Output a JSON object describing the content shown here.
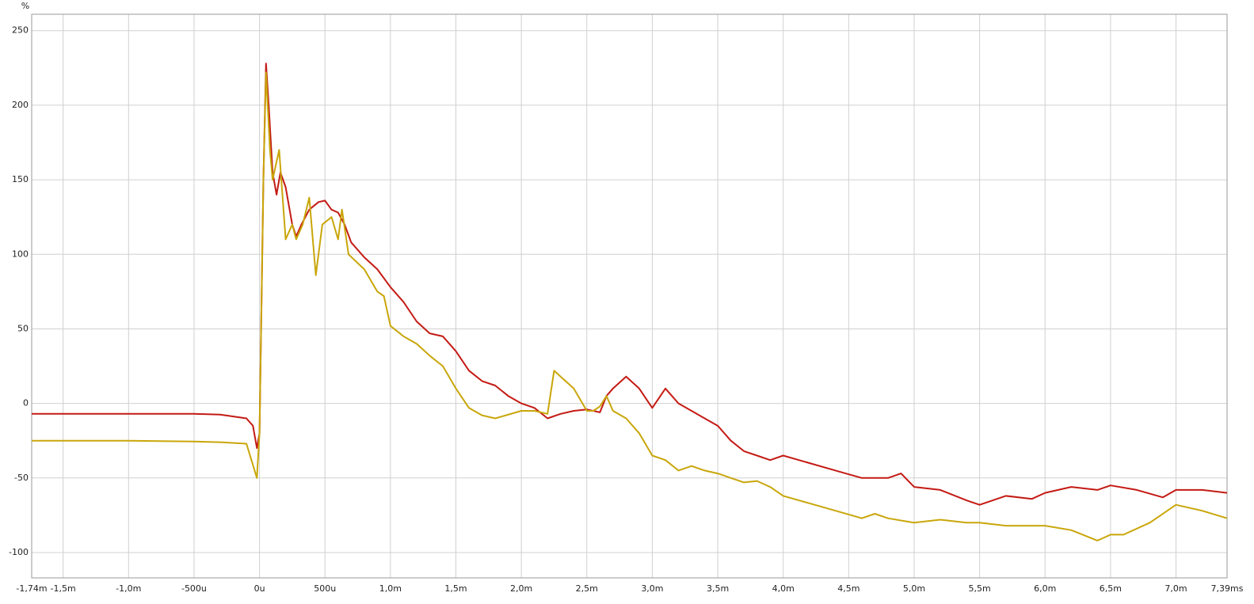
{
  "chart_data": {
    "type": "line",
    "y_label": "%",
    "xlim": [
      -1.74,
      7.39
    ],
    "ylim": [
      -117,
      261
    ],
    "xticks": [
      {
        "value": -1.74,
        "label": "-1,74m"
      },
      {
        "value": -1.5,
        "label": "-1,5m"
      },
      {
        "value": -1.0,
        "label": "-1,0m"
      },
      {
        "value": -0.5,
        "label": "-500u"
      },
      {
        "value": 0,
        "label": "0u"
      },
      {
        "value": 0.5,
        "label": "500u"
      },
      {
        "value": 1.0,
        "label": "1,0m"
      },
      {
        "value": 1.5,
        "label": "1,5m"
      },
      {
        "value": 2.0,
        "label": "2,0m"
      },
      {
        "value": 2.5,
        "label": "2,5m"
      },
      {
        "value": 3.0,
        "label": "3,0m"
      },
      {
        "value": 3.5,
        "label": "3,5m"
      },
      {
        "value": 4.0,
        "label": "4,0m"
      },
      {
        "value": 4.5,
        "label": "4,5m"
      },
      {
        "value": 5.0,
        "label": "5,0m"
      },
      {
        "value": 5.5,
        "label": "5,5m"
      },
      {
        "value": 6.0,
        "label": "6,0m"
      },
      {
        "value": 6.5,
        "label": "6,5m"
      },
      {
        "value": 7.0,
        "label": "7,0m"
      },
      {
        "value": 7.39,
        "label": "7,39ms"
      }
    ],
    "yticks": [
      250,
      200,
      150,
      100,
      50,
      0,
      -50,
      -100
    ],
    "grid": true,
    "series": [
      {
        "color": "#c41a14",
        "x": [
          -1.74,
          -1.0,
          -0.5,
          -0.3,
          -0.1,
          -0.05,
          -0.02,
          0,
          0.03,
          0.05,
          0.07,
          0.1,
          0.13,
          0.16,
          0.2,
          0.25,
          0.28,
          0.32,
          0.38,
          0.45,
          0.5,
          0.55,
          0.6,
          0.65,
          0.7,
          0.8,
          0.9,
          1.0,
          1.1,
          1.2,
          1.3,
          1.4,
          1.5,
          1.6,
          1.7,
          1.8,
          1.9,
          2.0,
          2.1,
          2.2,
          2.3,
          2.4,
          2.5,
          2.6,
          2.65,
          2.7,
          2.8,
          2.9,
          3.0,
          3.1,
          3.2,
          3.3,
          3.4,
          3.5,
          3.6,
          3.7,
          3.8,
          3.9,
          4.0,
          4.2,
          4.4,
          4.6,
          4.8,
          4.9,
          5.0,
          5.2,
          5.4,
          5.5,
          5.6,
          5.7,
          5.9,
          6.0,
          6.2,
          6.4,
          6.5,
          6.7,
          6.9,
          7.0,
          7.2,
          7.39
        ],
        "values": [
          -7,
          -7,
          -7,
          -7.5,
          -10,
          -15,
          -30,
          -20,
          150,
          228,
          200,
          155,
          140,
          155,
          145,
          120,
          112,
          120,
          130,
          135,
          136,
          130,
          128,
          120,
          108,
          98,
          90,
          78,
          68,
          55,
          47,
          45,
          35,
          22,
          15,
          12,
          5,
          0,
          -3,
          -10,
          -7,
          -5,
          -4,
          -6,
          5,
          10,
          18,
          10,
          -3,
          10,
          0,
          -5,
          -10,
          -15,
          -25,
          -32,
          -35,
          -38,
          -35,
          -40,
          -45,
          -50,
          -50,
          -47,
          -56,
          -58,
          -65,
          -68,
          -65,
          -62,
          -64,
          -60,
          -56,
          -58,
          -55,
          -58,
          -63,
          -58,
          -58,
          -60
        ]
      },
      {
        "color": "#c9a60a",
        "x": [
          -1.74,
          -1.0,
          -0.5,
          -0.3,
          -0.1,
          -0.02,
          0,
          0.03,
          0.05,
          0.08,
          0.1,
          0.15,
          0.2,
          0.25,
          0.28,
          0.33,
          0.38,
          0.43,
          0.48,
          0.55,
          0.6,
          0.63,
          0.68,
          0.8,
          0.9,
          0.95,
          1.0,
          1.1,
          1.2,
          1.3,
          1.4,
          1.5,
          1.6,
          1.7,
          1.8,
          2.0,
          2.1,
          2.2,
          2.25,
          2.3,
          2.4,
          2.5,
          2.55,
          2.6,
          2.65,
          2.7,
          2.8,
          2.9,
          3.0,
          3.1,
          3.2,
          3.3,
          3.4,
          3.5,
          3.6,
          3.7,
          3.8,
          3.9,
          4.0,
          4.2,
          4.4,
          4.6,
          4.7,
          4.8,
          5.0,
          5.2,
          5.4,
          5.5,
          5.7,
          6.0,
          6.2,
          6.4,
          6.5,
          6.6,
          6.8,
          7.0,
          7.2,
          7.39
        ],
        "values": [
          -25,
          -25,
          -25.5,
          -26,
          -27,
          -50,
          -20,
          150,
          222,
          170,
          150,
          170,
          110,
          120,
          110,
          120,
          138,
          86,
          120,
          125,
          110,
          130,
          100,
          90,
          75,
          72,
          52,
          45,
          40,
          32,
          25,
          10,
          -3,
          -8,
          -10,
          -5,
          -5,
          -7,
          22,
          18,
          10,
          -5,
          -5,
          -2,
          5,
          -5,
          -10,
          -20,
          -35,
          -38,
          -45,
          -42,
          -45,
          -47,
          -50,
          -53,
          -52,
          -56,
          -62,
          -67,
          -72,
          -77,
          -74,
          -77,
          -80,
          -78,
          -80,
          -80,
          -82,
          -82,
          -85,
          -92,
          -88,
          -88,
          -80,
          -68,
          -72,
          -77
        ]
      }
    ]
  }
}
